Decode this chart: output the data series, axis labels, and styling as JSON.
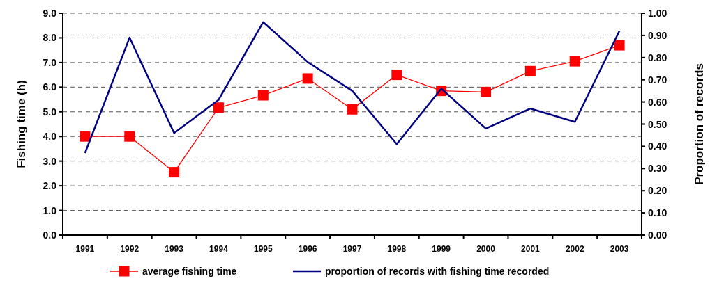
{
  "chart_data": {
    "type": "line",
    "xlabel": null,
    "ylabel": "Fishing time (h)",
    "y2label": "Proportion of records",
    "categories": [
      "1991",
      "1992",
      "1993",
      "1994",
      "1995",
      "1996",
      "1997",
      "1998",
      "1999",
      "2000",
      "2001",
      "2002",
      "2003"
    ],
    "series": [
      {
        "name": "average fishing time",
        "color": "#ff0000",
        "marker": "square",
        "values": [
          4.0,
          4.0,
          2.55,
          5.17,
          5.67,
          6.35,
          5.1,
          6.5,
          5.85,
          5.8,
          6.65,
          7.05,
          7.7
        ]
      },
      {
        "name": "proportion of records with fishing time recorded",
        "color": "#000080",
        "marker": "none",
        "axis": "y2",
        "values": [
          0.37,
          0.89,
          0.46,
          0.61,
          0.96,
          0.78,
          0.65,
          0.41,
          0.66,
          0.48,
          0.57,
          0.51,
          0.92
        ]
      }
    ],
    "ylim": [
      0,
      9
    ],
    "yticks": [
      {
        "value": 0,
        "label": "0.0"
      },
      {
        "value": 1,
        "label": "1.0"
      },
      {
        "value": 2,
        "label": "2.0"
      },
      {
        "value": 3,
        "label": "3.0"
      },
      {
        "value": 4,
        "label": "4.0"
      },
      {
        "value": 5,
        "label": "5.0"
      },
      {
        "value": 6,
        "label": "6.0"
      },
      {
        "value": 7,
        "label": "7.0"
      },
      {
        "value": 8,
        "label": "8.0"
      },
      {
        "value": 9,
        "label": "9.0"
      }
    ],
    "y2lim": [
      0,
      1
    ],
    "y2ticks": [
      {
        "value": 0,
        "label": "0.00"
      },
      {
        "value": 0.1,
        "label": "0.10"
      },
      {
        "value": 0.2,
        "label": "0.20"
      },
      {
        "value": 0.3,
        "label": "0.30"
      },
      {
        "value": 0.4,
        "label": "0.40"
      },
      {
        "value": 0.5,
        "label": "0.50"
      },
      {
        "value": 0.6,
        "label": "0.60"
      },
      {
        "value": 0.7,
        "label": "0.70"
      },
      {
        "value": 0.8,
        "label": "0.80"
      },
      {
        "value": 0.9,
        "label": "0.90"
      },
      {
        "value": 1,
        "label": "1.00"
      }
    ],
    "grid": "y",
    "legend": "bottom"
  }
}
